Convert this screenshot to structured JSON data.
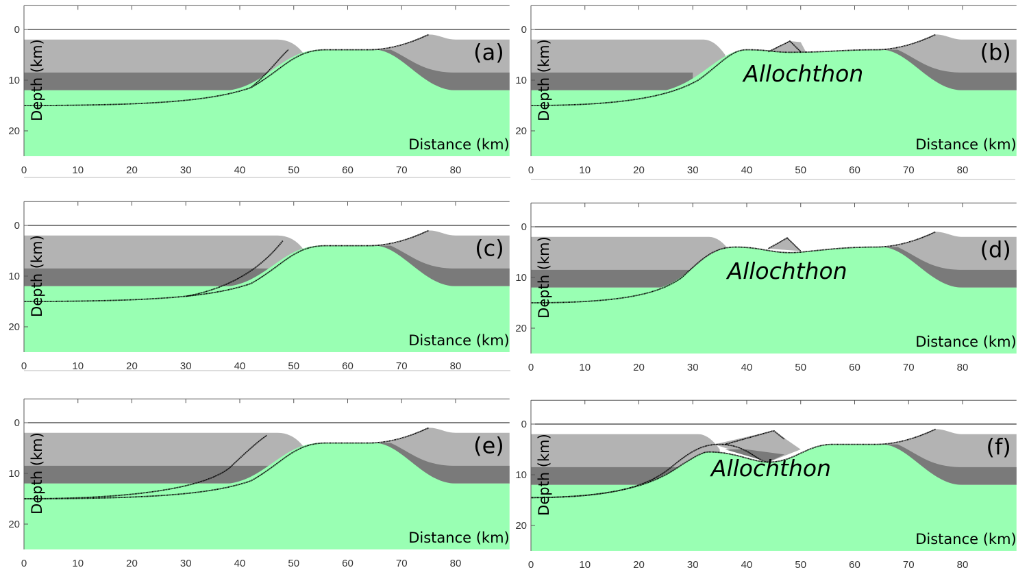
{
  "axes": {
    "x_label": "Distance (km)",
    "y_label": "Depth (km)",
    "xticks": [
      0,
      10,
      20,
      30,
      40,
      50,
      60,
      70,
      80
    ],
    "yticks": [
      0,
      10,
      20
    ]
  },
  "panels": [
    {
      "label": "(a)"
    },
    {
      "label": "(b)",
      "annotation": "Allochthon"
    },
    {
      "label": "(c)"
    },
    {
      "label": "(d)",
      "annotation": "Allochthon"
    },
    {
      "label": "(e)"
    },
    {
      "label": "(f)",
      "annotation": "Allochthon"
    }
  ]
}
